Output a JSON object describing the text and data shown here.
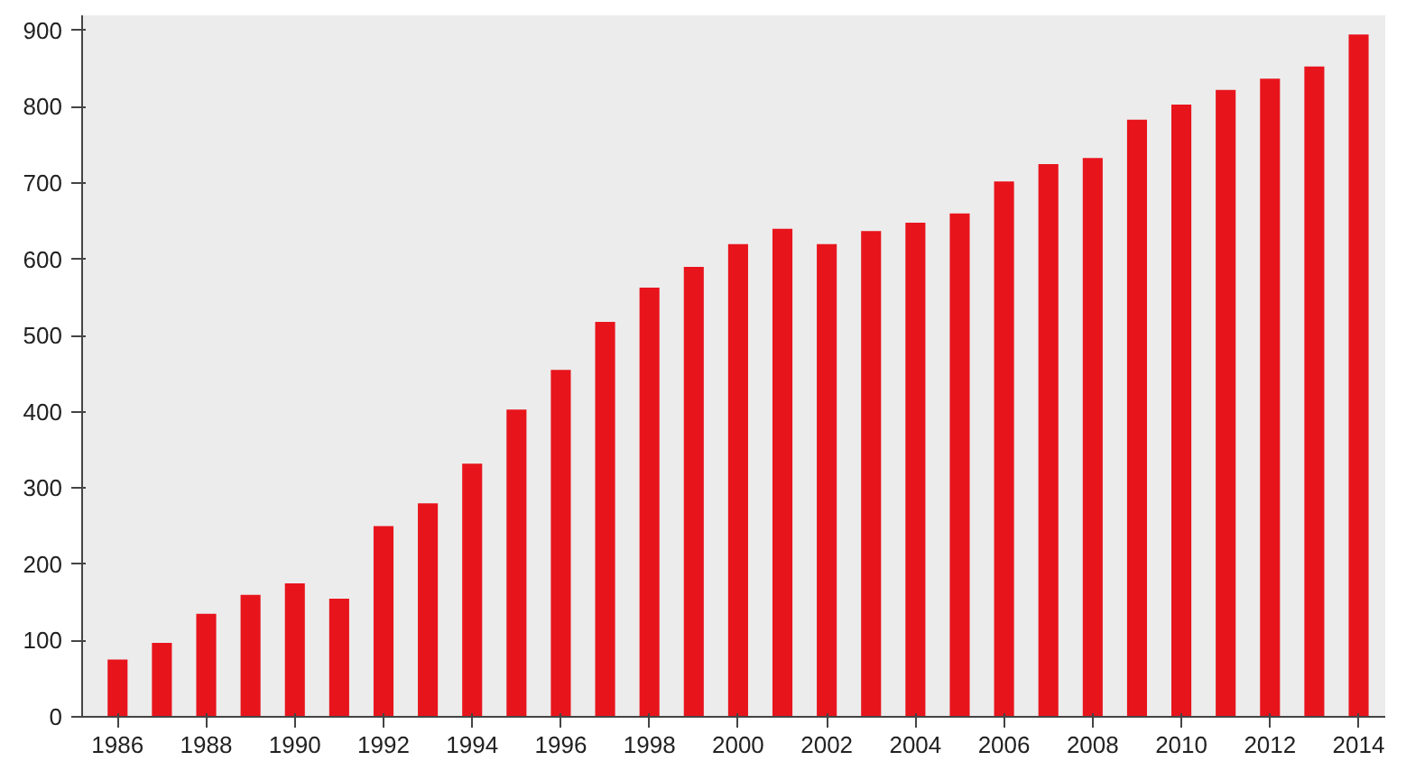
{
  "chart_data": {
    "type": "bar",
    "x": [
      1986,
      1987,
      1988,
      1989,
      1990,
      1991,
      1992,
      1993,
      1994,
      1995,
      1996,
      1997,
      1998,
      1999,
      2000,
      2001,
      2002,
      2003,
      2004,
      2005,
      2006,
      2007,
      2008,
      2009,
      2010,
      2011,
      2012,
      2013,
      2014
    ],
    "values": [
      75,
      97,
      135,
      160,
      175,
      155,
      250,
      280,
      332,
      403,
      455,
      518,
      563,
      590,
      620,
      640,
      620,
      637,
      648,
      660,
      702,
      725,
      733,
      783,
      803,
      822,
      837,
      853,
      895
    ],
    "color": "#e8141c",
    "xlim": [
      1985.2,
      2014.6
    ],
    "xticks": [
      1986,
      1988,
      1990,
      1992,
      1994,
      1996,
      1998,
      2000,
      2002,
      2004,
      2006,
      2008,
      2010,
      2012,
      2014
    ],
    "ylim": [
      0,
      920
    ],
    "yticks": [
      0,
      100,
      200,
      300,
      400,
      500,
      600,
      700,
      800,
      900
    ],
    "grid": false
  }
}
